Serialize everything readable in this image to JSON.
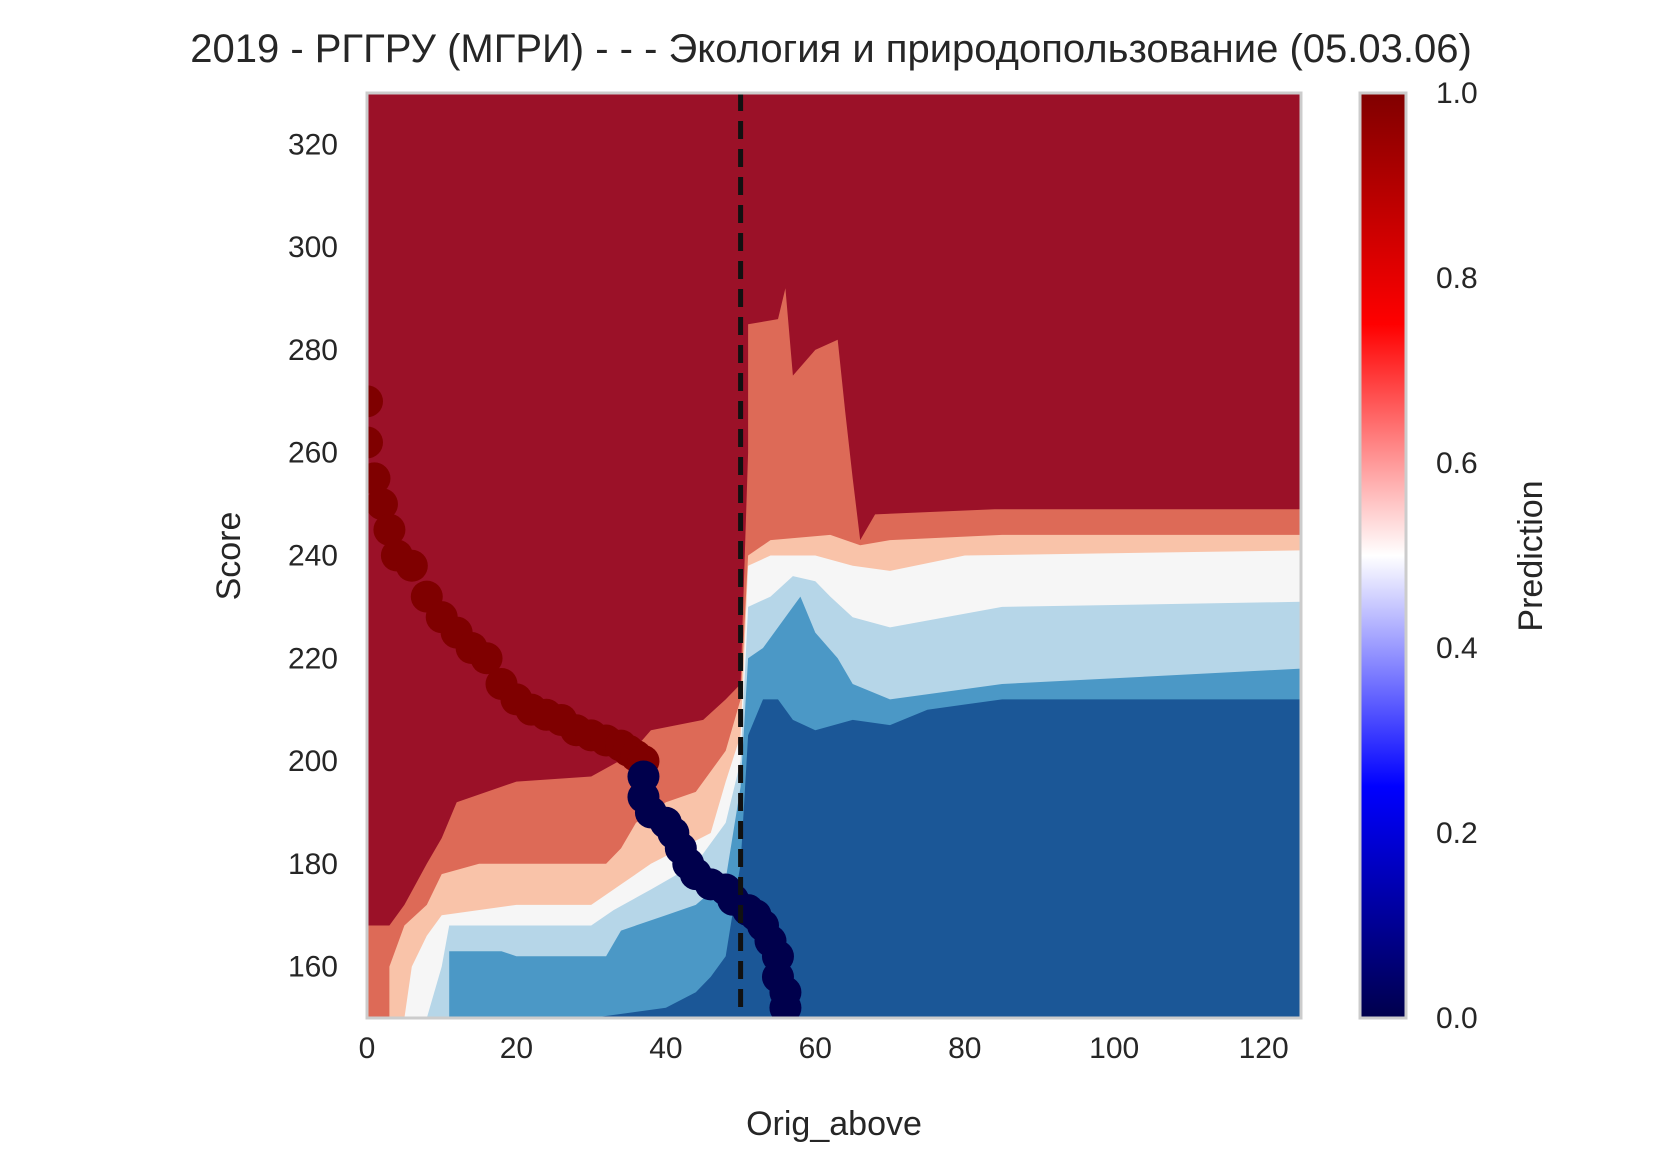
{
  "chart_data": {
    "type": "heatmap",
    "title": "2019 - РГГРУ (МГРИ) - - - Экология и природопользование (05.03.06)",
    "xlabel": "Orig_above",
    "ylabel": "Score",
    "xlim": [
      0,
      125
    ],
    "ylim": [
      150,
      330
    ],
    "xticks": [
      0,
      20,
      40,
      60,
      80,
      100,
      120
    ],
    "yticks": [
      160,
      180,
      200,
      220,
      240,
      260,
      280,
      300,
      320
    ],
    "grid": false,
    "colorbar": {
      "label": "Prediction",
      "range": [
        0,
        1
      ],
      "ticks": [
        "0.0",
        "0.2",
        "0.4",
        "0.6",
        "0.8",
        "1.0"
      ],
      "colormap": "seismic",
      "stops": [
        "#00004c",
        "#0000ff",
        "#ffffff",
        "#ff0000",
        "#800000"
      ]
    },
    "contour_levels": [
      {
        "level": "0.0-0.2",
        "color": "#1b5797"
      },
      {
        "level": "0.2-0.3",
        "color": "#4b98c6"
      },
      {
        "level": "0.3-0.45",
        "color": "#b6d6e8"
      },
      {
        "level": "0.45-0.55",
        "color": "#f6f6f6"
      },
      {
        "level": "0.55-0.65",
        "color": "#f9c3a9"
      },
      {
        "level": "0.65-0.8",
        "color": "#dd6a57"
      },
      {
        "level": "0.8-1.0",
        "color": "#9b1128"
      }
    ],
    "threshold_line": {
      "x": 50,
      "style": "dashed",
      "color": "#111111"
    },
    "admitted_points": {
      "color": "#7f0000",
      "points": [
        [
          0,
          270
        ],
        [
          0,
          262
        ],
        [
          1,
          255
        ],
        [
          2,
          250
        ],
        [
          3,
          245
        ],
        [
          4,
          240
        ],
        [
          6,
          238
        ],
        [
          8,
          232
        ],
        [
          10,
          228
        ],
        [
          12,
          225
        ],
        [
          14,
          222
        ],
        [
          16,
          220
        ],
        [
          18,
          215
        ],
        [
          20,
          212
        ],
        [
          22,
          210
        ],
        [
          24,
          209
        ],
        [
          26,
          208
        ],
        [
          28,
          206
        ],
        [
          30,
          205
        ],
        [
          32,
          204
        ],
        [
          34,
          203
        ],
        [
          35,
          202
        ],
        [
          36,
          201
        ],
        [
          37,
          200
        ]
      ]
    },
    "rejected_points": {
      "color": "#00004c",
      "points": [
        [
          37,
          197
        ],
        [
          37,
          193
        ],
        [
          38,
          190
        ],
        [
          40,
          188
        ],
        [
          41,
          186
        ],
        [
          42,
          183
        ],
        [
          43,
          180
        ],
        [
          44,
          178
        ],
        [
          46,
          176
        ],
        [
          48,
          175
        ],
        [
          49,
          173
        ],
        [
          51,
          171
        ],
        [
          52,
          170
        ],
        [
          53,
          168
        ],
        [
          54,
          165
        ],
        [
          55,
          162
        ],
        [
          55,
          158
        ],
        [
          56,
          155
        ],
        [
          56,
          152
        ]
      ]
    }
  }
}
